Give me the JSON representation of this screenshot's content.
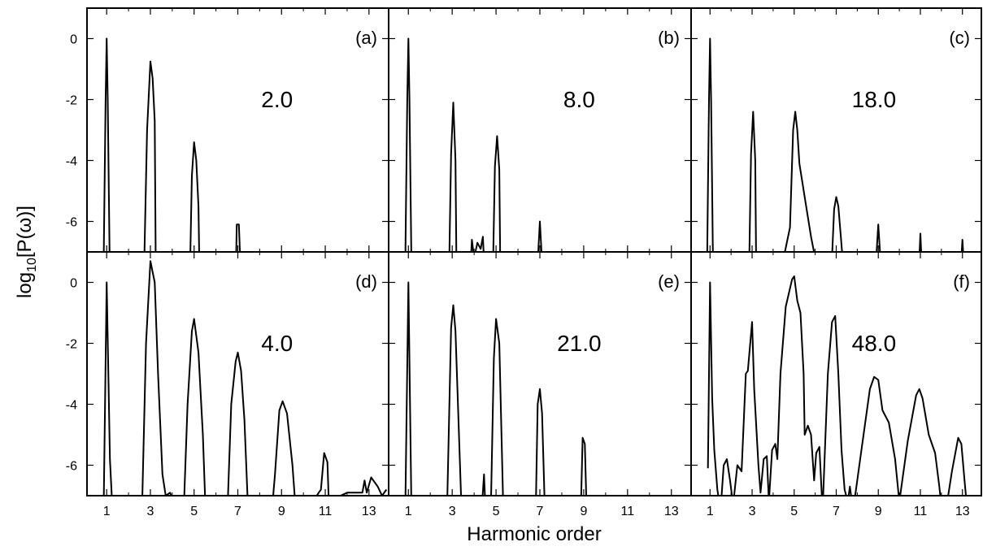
{
  "axes_titles": {
    "xlabel": "Harmonic order",
    "ylabel": {
      "prefix": "log",
      "sub": "10",
      "suffix": "[P(ω)]"
    }
  },
  "chart_data": [
    {
      "type": "line",
      "panel_label": "(a)",
      "annotation": "2.0",
      "xlim": [
        0.1,
        13.9
      ],
      "ylim": [
        -7,
        1
      ],
      "xticks": [
        1,
        3,
        5,
        7,
        9,
        11,
        13
      ],
      "xminorticks": [
        2,
        4,
        6,
        8,
        10,
        12
      ],
      "yticks": [
        0,
        -2,
        -4,
        -6
      ],
      "show_xticklabels": false,
      "show_yticklabels": true,
      "x": [
        0.85,
        0.95,
        1.0,
        1.05,
        1.15,
        2.7,
        2.85,
        3.0,
        3.1,
        3.2,
        3.25,
        4.8,
        4.9,
        5.0,
        5.1,
        5.2,
        5.25,
        6.9,
        6.95,
        7.05,
        7.15
      ],
      "series": [
        {
          "color": "#000000",
          "values": [
            -8,
            -2,
            0,
            -2,
            -8,
            -8,
            -3,
            -0.75,
            -1.3,
            -2.7,
            -8,
            -8,
            -4.5,
            -3.4,
            -4,
            -5.5,
            -8,
            -8,
            -6.1,
            -6.1,
            -8
          ]
        }
      ]
    },
    {
      "type": "line",
      "panel_label": "(b)",
      "annotation": "8.0",
      "xlim": [
        0.1,
        13.9
      ],
      "ylim": [
        -7,
        1
      ],
      "xticks": [
        1,
        3,
        5,
        7,
        9,
        11,
        13
      ],
      "xminorticks": [
        2,
        4,
        6,
        8,
        10,
        12
      ],
      "yticks": [
        0,
        -2,
        -4,
        -6
      ],
      "show_xticklabels": false,
      "show_yticklabels": false,
      "x": [
        0.85,
        0.95,
        1.0,
        1.05,
        1.15,
        2.85,
        2.95,
        3.05,
        3.15,
        3.2,
        3.8,
        3.9,
        4.0,
        4.15,
        4.3,
        4.4,
        4.5,
        4.85,
        4.95,
        5.05,
        5.15,
        5.2,
        6.85,
        7.0,
        7.15
      ],
      "series": [
        {
          "color": "#000000",
          "values": [
            -8,
            -2,
            0,
            -2,
            -8,
            -8,
            -3.8,
            -2.1,
            -4,
            -8,
            -8,
            -6.6,
            -7.2,
            -6.7,
            -6.9,
            -6.5,
            -8,
            -8,
            -4.2,
            -3.2,
            -4.3,
            -8,
            -8,
            -6,
            -8
          ]
        }
      ]
    },
    {
      "type": "line",
      "panel_label": "(c)",
      "annotation": "18.0",
      "xlim": [
        0.1,
        13.9
      ],
      "ylim": [
        -7,
        1
      ],
      "xticks": [
        1,
        3,
        5,
        7,
        9,
        11,
        13
      ],
      "xminorticks": [
        2,
        4,
        6,
        8,
        10,
        12
      ],
      "yticks": [
        0,
        -2,
        -4,
        -6
      ],
      "show_xticklabels": false,
      "show_yticklabels": false,
      "x": [
        0.85,
        0.95,
        1.0,
        1.05,
        1.15,
        2.85,
        2.95,
        3.05,
        3.15,
        3.2,
        4.5,
        4.8,
        4.95,
        5.05,
        5.15,
        5.25,
        5.5,
        5.8,
        6.0,
        6.75,
        6.9,
        7.0,
        7.1,
        7.3,
        8.9,
        9.0,
        9.1,
        10.95,
        11.0,
        11.05,
        12.95,
        13.0,
        13.05
      ],
      "series": [
        {
          "color": "#000000",
          "values": [
            -8,
            -2,
            0,
            -2,
            -8,
            -8,
            -3.8,
            -2.4,
            -4,
            -8,
            -7.2,
            -6.2,
            -3,
            -2.4,
            -3,
            -4.1,
            -5.2,
            -6.5,
            -7.2,
            -8,
            -5.6,
            -5.2,
            -5.5,
            -7.2,
            -7.2,
            -6.1,
            -7.2,
            -7.2,
            -6.4,
            -7.2,
            -7.2,
            -6.6,
            -7.2
          ]
        }
      ]
    },
    {
      "type": "line",
      "panel_label": "(d)",
      "annotation": "4.0",
      "xlim": [
        0.1,
        13.9
      ],
      "ylim": [
        -7,
        1
      ],
      "xticks": [
        1,
        3,
        5,
        7,
        9,
        11,
        13
      ],
      "xminorticks": [
        2,
        4,
        6,
        8,
        10,
        12
      ],
      "yticks": [
        0,
        -2,
        -4,
        -6
      ],
      "show_xticklabels": true,
      "show_yticklabels": true,
      "x": [
        0.85,
        1.0,
        1.15,
        1.3,
        2.6,
        2.8,
        3.0,
        3.2,
        3.35,
        3.55,
        3.7,
        3.9,
        4.5,
        4.7,
        4.9,
        5.0,
        5.2,
        5.4,
        5.55,
        6.5,
        6.7,
        6.9,
        7.0,
        7.15,
        7.3,
        7.5,
        8.5,
        8.7,
        8.9,
        9.05,
        9.25,
        9.5,
        9.7,
        10.7,
        10.8,
        10.95,
        11.1,
        11.2,
        11.7,
        12.0,
        12.4,
        12.7,
        12.8,
        12.9,
        13.1,
        13.4,
        13.6,
        13.8
      ],
      "series": [
        {
          "color": "#000000",
          "values": [
            -8,
            0,
            -5.8,
            -8,
            -8,
            -2,
            0.7,
            0,
            -3,
            -6.3,
            -7,
            -6.9,
            -8,
            -4,
            -1.6,
            -1.2,
            -2.3,
            -5,
            -8,
            -8,
            -4,
            -2.6,
            -2.3,
            -2.9,
            -4.5,
            -8,
            -8,
            -6.3,
            -4.2,
            -3.9,
            -4.3,
            -6,
            -8,
            -6.9,
            -6.8,
            -5.6,
            -5.9,
            -8,
            -7,
            -6.9,
            -6.9,
            -6.9,
            -6.5,
            -6.9,
            -6.4,
            -6.7,
            -7,
            -6.8
          ]
        }
      ]
    },
    {
      "type": "line",
      "panel_label": "(e)",
      "annotation": "21.0",
      "xlim": [
        0.1,
        13.9
      ],
      "ylim": [
        -7,
        1
      ],
      "xticks": [
        1,
        3,
        5,
        7,
        9,
        11,
        13
      ],
      "xminorticks": [
        2,
        4,
        6,
        8,
        10,
        12
      ],
      "yticks": [
        0,
        -2,
        -4,
        -6
      ],
      "show_xticklabels": true,
      "show_yticklabels": false,
      "x": [
        0.85,
        1.0,
        1.15,
        2.75,
        2.95,
        3.05,
        3.15,
        3.45,
        4.3,
        4.45,
        4.55,
        4.75,
        4.9,
        5.0,
        5.15,
        5.35,
        6.8,
        6.9,
        7.0,
        7.1,
        7.25,
        8.85,
        8.95,
        9.05,
        9.15
      ],
      "series": [
        {
          "color": "#000000",
          "values": [
            -8,
            0,
            -8,
            -8,
            -1.5,
            -0.75,
            -1.6,
            -8,
            -8,
            -6.3,
            -8,
            -8,
            -2.5,
            -1.2,
            -2,
            -8,
            -8,
            -4,
            -3.5,
            -4.3,
            -8,
            -8,
            -5.1,
            -5.3,
            -8
          ]
        }
      ]
    },
    {
      "type": "line",
      "panel_label": "(f)",
      "annotation": "48.0",
      "xlim": [
        0.1,
        13.9
      ],
      "ylim": [
        -7,
        1
      ],
      "xticks": [
        1,
        3,
        5,
        7,
        9,
        11,
        13
      ],
      "xminorticks": [
        2,
        4,
        6,
        8,
        10,
        12
      ],
      "yticks": [
        0,
        -2,
        -4,
        -6
      ],
      "show_xticklabels": true,
      "show_yticklabels": false,
      "x": [
        0.9,
        1.0,
        1.1,
        1.2,
        1.35,
        1.5,
        1.65,
        1.8,
        1.95,
        2.1,
        2.3,
        2.5,
        2.7,
        2.8,
        3.0,
        3.1,
        3.3,
        3.4,
        3.55,
        3.7,
        3.8,
        3.95,
        4.1,
        4.2,
        4.35,
        4.6,
        4.9,
        5.0,
        5.15,
        5.3,
        5.45,
        5.5,
        5.65,
        5.8,
        5.95,
        6.05,
        6.2,
        6.35,
        6.6,
        6.8,
        6.95,
        7.1,
        7.25,
        7.4,
        7.55,
        7.65,
        7.8,
        8.2,
        8.6,
        8.8,
        9.0,
        9.2,
        9.5,
        9.8,
        10.0,
        10.4,
        10.8,
        10.95,
        11.1,
        11.4,
        11.7,
        11.9,
        12.1,
        12.5,
        12.8,
        12.95,
        13.1,
        13.3
      ],
      "series": [
        {
          "color": "#000000",
          "values": [
            -6.1,
            0,
            -3.8,
            -5.5,
            -6.8,
            -7.5,
            -6,
            -5.8,
            -6.5,
            -7.3,
            -6,
            -6.2,
            -3,
            -2.9,
            -1.3,
            -3.5,
            -6,
            -6.9,
            -5.8,
            -5.7,
            -7.2,
            -5.5,
            -5.3,
            -5.8,
            -3,
            -0.8,
            0.1,
            0.2,
            -0.6,
            -1,
            -3,
            -5,
            -4.7,
            -5,
            -6.5,
            -5.6,
            -5.4,
            -7.5,
            -3,
            -1.3,
            -1.1,
            -3,
            -5.5,
            -6.8,
            -7.2,
            -6.7,
            -7.5,
            -5.5,
            -3.5,
            -3.1,
            -3.2,
            -4.2,
            -4.6,
            -5.8,
            -7.2,
            -5.2,
            -3.7,
            -3.5,
            -3.8,
            -5,
            -5.6,
            -6.7,
            -8,
            -6.2,
            -5.1,
            -5.3,
            -6.5,
            -8
          ]
        }
      ]
    }
  ]
}
